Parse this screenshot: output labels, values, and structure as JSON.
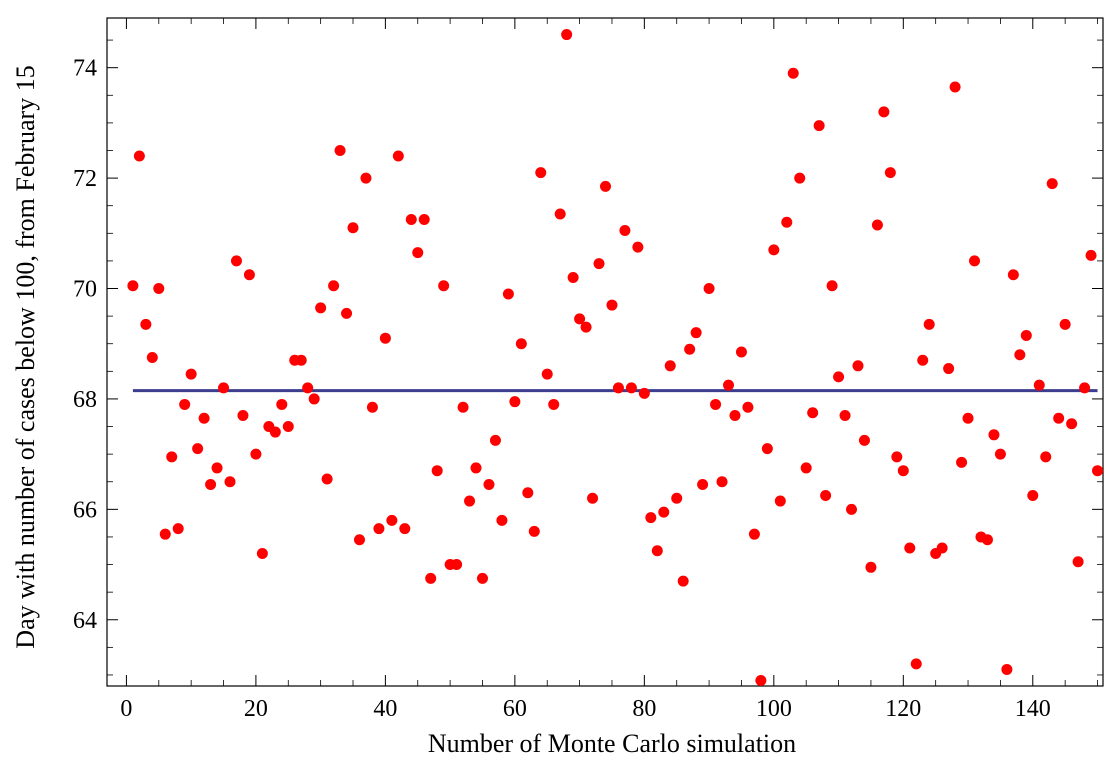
{
  "chart_data": {
    "type": "scatter",
    "title": "",
    "xlabel": "Number of Monte Carlo simulation",
    "ylabel": "Day with number of cases below 100, from February 15",
    "xlim": [
      -3,
      151
    ],
    "ylim": [
      62.8,
      74.9
    ],
    "xticks": [
      0,
      20,
      40,
      60,
      80,
      100,
      120,
      140
    ],
    "yticks": [
      64,
      66,
      68,
      70,
      72,
      74
    ],
    "grid": false,
    "point_color": "#ff0000",
    "mean_line": {
      "y": 68.15,
      "color": "#3d3d8f"
    },
    "points": {
      "x": [
        1,
        2,
        3,
        4,
        5,
        6,
        7,
        8,
        9,
        10,
        11,
        12,
        13,
        14,
        15,
        16,
        17,
        18,
        19,
        20,
        21,
        22,
        23,
        24,
        25,
        26,
        27,
        28,
        29,
        30,
        31,
        32,
        33,
        34,
        35,
        36,
        37,
        38,
        39,
        40,
        41,
        42,
        43,
        44,
        45,
        46,
        47,
        48,
        49,
        50,
        51,
        52,
        53,
        54,
        55,
        56,
        57,
        58,
        59,
        60,
        61,
        62,
        63,
        64,
        65,
        66,
        67,
        68,
        69,
        70,
        71,
        72,
        73,
        74,
        75,
        76,
        77,
        78,
        79,
        80,
        81,
        82,
        83,
        84,
        85,
        86,
        87,
        88,
        89,
        90,
        91,
        92,
        93,
        94,
        95,
        96,
        97,
        98,
        99,
        100,
        101,
        102,
        103,
        104,
        105,
        106,
        107,
        108,
        109,
        110,
        111,
        112,
        113,
        114,
        115,
        116,
        117,
        118,
        119,
        120,
        121,
        122,
        123,
        124,
        125,
        126,
        127,
        128,
        129,
        130,
        131,
        132,
        133,
        134,
        135,
        136,
        137,
        138,
        139,
        140,
        141,
        142,
        143,
        144,
        145,
        146,
        147,
        148,
        149,
        150
      ],
      "y": [
        70.05,
        72.4,
        69.35,
        68.75,
        70.0,
        65.55,
        66.95,
        65.65,
        67.9,
        68.45,
        67.1,
        67.65,
        66.45,
        66.75,
        68.2,
        66.5,
        70.5,
        67.7,
        70.25,
        67.0,
        65.2,
        67.5,
        67.4,
        67.9,
        67.5,
        68.7,
        68.7,
        68.2,
        68.0,
        69.65,
        66.55,
        70.05,
        72.5,
        69.55,
        71.1,
        65.45,
        72.0,
        67.85,
        65.65,
        69.1,
        65.8,
        72.4,
        65.65,
        71.25,
        70.65,
        71.25,
        64.75,
        66.7,
        70.05,
        65.0,
        65.0,
        67.85,
        66.15,
        66.75,
        64.75,
        66.45,
        67.25,
        65.8,
        69.9,
        67.95,
        69.0,
        66.3,
        65.6,
        72.1,
        68.45,
        67.9,
        71.35,
        74.6,
        70.2,
        69.45,
        69.3,
        66.2,
        70.45,
        71.85,
        69.7,
        68.2,
        71.05,
        68.2,
        70.75,
        68.1,
        65.85,
        65.25,
        65.95,
        68.6,
        66.2,
        64.7,
        68.9,
        69.2,
        66.45,
        70.0,
        67.9,
        66.5,
        68.25,
        67.7,
        68.85,
        67.85,
        65.55,
        62.9,
        67.1,
        70.7,
        66.15,
        71.2,
        73.9,
        72.0,
        66.75,
        67.75,
        72.95,
        66.25,
        70.05,
        68.4,
        67.7,
        66.0,
        68.6,
        67.25,
        64.95,
        71.15,
        73.2,
        72.1,
        66.95,
        66.7,
        65.3,
        63.2,
        68.7,
        69.35,
        65.2,
        65.3,
        68.55,
        73.65,
        66.85,
        67.65,
        70.5,
        65.5,
        65.45,
        67.35,
        67.0,
        63.1,
        70.25,
        68.8,
        69.15,
        66.25,
        68.25,
        66.95,
        71.9,
        67.65,
        69.35,
        67.55,
        65.05,
        68.2,
        70.6,
        66.7
      ]
    }
  }
}
